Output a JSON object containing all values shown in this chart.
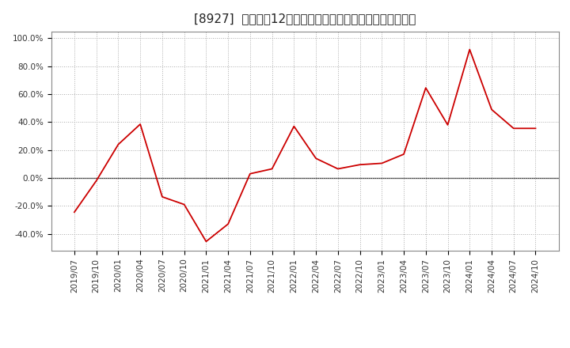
{
  "title": "[8927]  売上高の12か月移動合計の対前年同期増減率の推移",
  "line_color": "#cc0000",
  "background_color": "#ffffff",
  "plot_bg_color": "#ffffff",
  "grid_color": "#aaaaaa",
  "zero_line_color": "#333333",
  "dates": [
    "2019/07",
    "2019/10",
    "2020/01",
    "2020/04",
    "2020/07",
    "2020/10",
    "2021/01",
    "2021/04",
    "2021/07",
    "2021/10",
    "2022/01",
    "2022/04",
    "2022/07",
    "2022/10",
    "2023/01",
    "2023/04",
    "2023/07",
    "2023/10",
    "2024/01",
    "2024/04",
    "2024/07",
    "2024/10"
  ],
  "values": [
    -0.245,
    -0.02,
    0.24,
    0.385,
    -0.135,
    -0.19,
    -0.455,
    -0.33,
    0.03,
    0.065,
    0.37,
    0.14,
    0.065,
    0.095,
    0.105,
    0.17,
    0.645,
    0.38,
    0.92,
    0.49,
    0.355,
    0.355
  ],
  "ylim": [
    -0.52,
    1.05
  ],
  "yticks": [
    -0.4,
    -0.2,
    0.0,
    0.2,
    0.4,
    0.6,
    0.8,
    1.0
  ],
  "ytick_labels": [
    "-40.0%",
    "-20.0%",
    "0.0%",
    "20.0%",
    "40.0%",
    "60.0%",
    "80.0%",
    "100.0%"
  ],
  "figsize": [
    7.2,
    4.4
  ],
  "dpi": 100,
  "title_fontsize": 11,
  "tick_fontsize": 7.5
}
